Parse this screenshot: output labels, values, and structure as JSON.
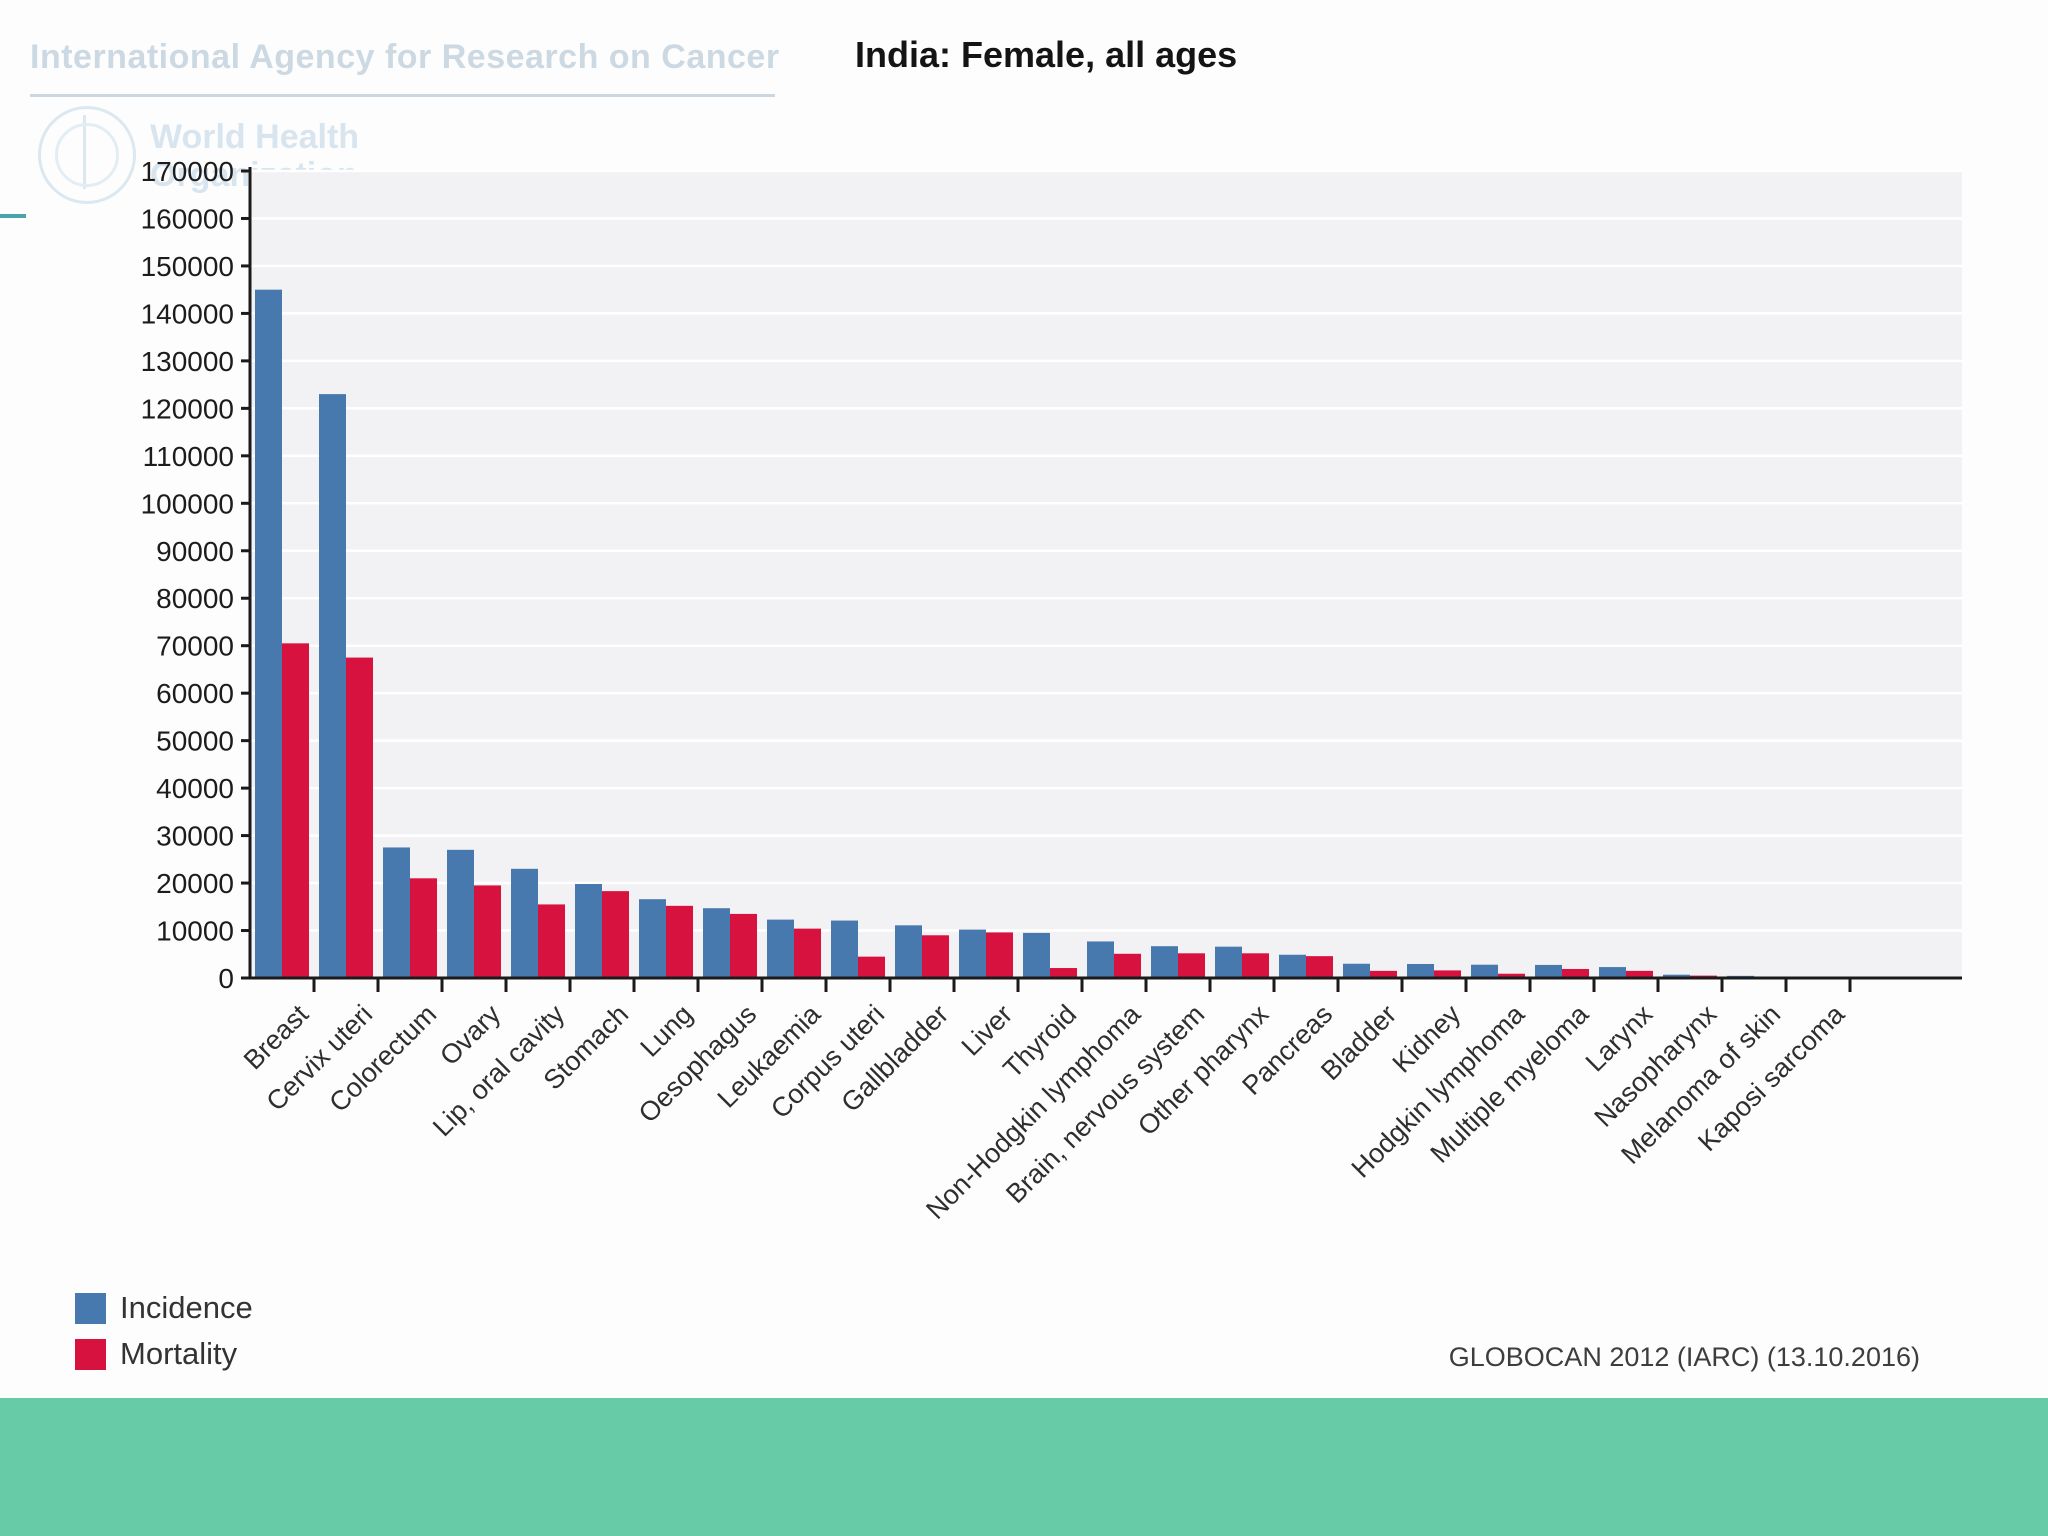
{
  "page": {
    "header": {
      "iarc_text": "International Agency for Research on Cancer",
      "who_line1": "World Health",
      "who_line2": "Organization"
    },
    "footer_source": "GLOBOCAN 2012 (IARC) (13.10.2016)",
    "colors": {
      "incidence": "#4779ae",
      "mortality": "#d8123f",
      "footer_band": "#68cba8",
      "accent_line": "#4aa2ab",
      "plot_background": "#f2f1f4",
      "gridline": "#ffffff",
      "axis": "#1a1a1a"
    }
  },
  "chart_data": {
    "type": "bar",
    "title": "India: Female, all ages",
    "xlabel": "",
    "ylabel": "",
    "ylim": [
      0,
      170000
    ],
    "ytick_step": 10000,
    "yticks": [
      0,
      10000,
      20000,
      30000,
      40000,
      50000,
      60000,
      70000,
      80000,
      90000,
      100000,
      110000,
      120000,
      130000,
      140000,
      150000,
      160000,
      170000
    ],
    "grid": true,
    "legend_position": "bottom-left",
    "categories": [
      "Breast",
      "Cervix uteri",
      "Colorectum",
      "Ovary",
      "Lip, oral cavity",
      "Stomach",
      "Lung",
      "Oesophagus",
      "Leukaemia",
      "Corpus uteri",
      "Gallbladder",
      "Liver",
      "Thyroid",
      "Non-Hodgkin lymphoma",
      "Brain, nervous system",
      "Other pharynx",
      "Pancreas",
      "Bladder",
      "Kidney",
      "Hodgkin lymphoma",
      "Multiple myeloma",
      "Larynx",
      "Nasopharynx",
      "Melanoma of skin",
      "Kaposi sarcoma"
    ],
    "series": [
      {
        "name": "Incidence",
        "color": "#4779ae",
        "values": [
          145000,
          123000,
          27500,
          27000,
          23000,
          19800,
          16600,
          14700,
          12300,
          12100,
          11100,
          10200,
          9500,
          7700,
          6700,
          6600,
          4900,
          3000,
          2950,
          2800,
          2750,
          2300,
          700,
          450,
          100
        ]
      },
      {
        "name": "Mortality",
        "color": "#d8123f",
        "values": [
          70500,
          67500,
          21000,
          19500,
          15500,
          18300,
          15200,
          13500,
          10400,
          4500,
          9000,
          9600,
          2100,
          5100,
          5200,
          5200,
          4600,
          1500,
          1600,
          900,
          1900,
          1500,
          500,
          200,
          50
        ]
      }
    ],
    "source_note": "GLOBOCAN 2012 (IARC) (13.10.2016)"
  }
}
